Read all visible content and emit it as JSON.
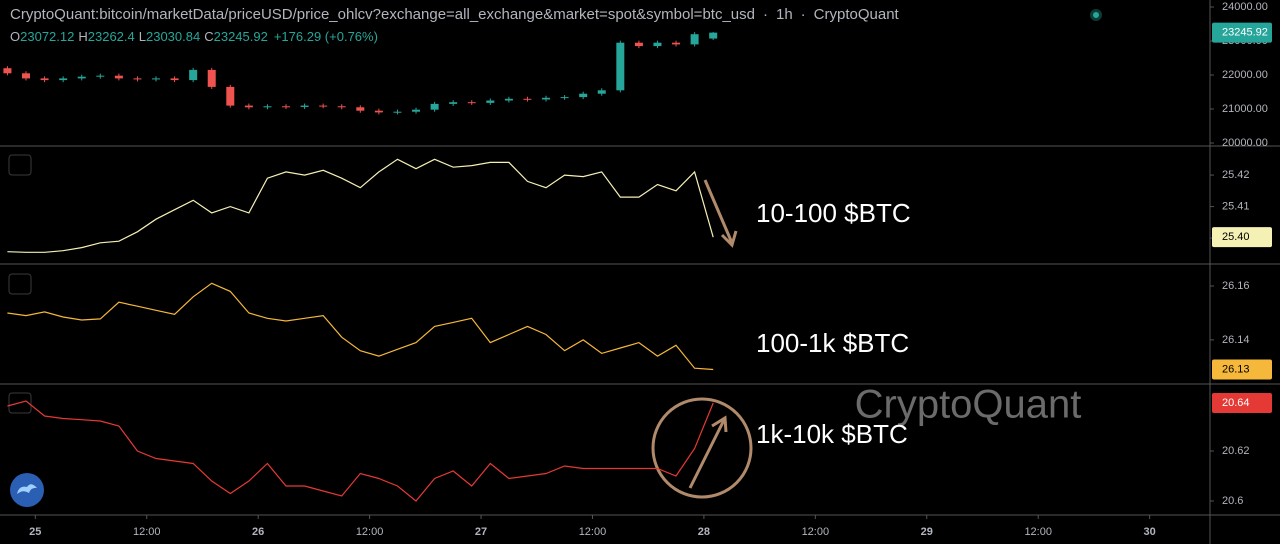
{
  "header": {
    "symbol": "CryptoQuant:bitcoin/marketData/priceUSD/price_ohlcv?exchange=all_exchange&market=spot&symbol=btc_usd",
    "sep": "·",
    "interval": "1h",
    "source": "CryptoQuant",
    "ohlc_labels": [
      "O",
      "H",
      "L",
      "C"
    ],
    "change": "+176.29 (+0.76%)",
    "watermark": "CryptoQuant"
  },
  "chart_data": [
    {
      "type": "candlestick",
      "up_color": "#26a69a",
      "down_color": "#ef5350",
      "x": [
        -3,
        -1,
        1,
        3,
        5,
        7,
        9,
        11,
        13,
        15,
        17,
        19,
        21,
        23,
        25,
        27,
        29,
        31,
        33,
        35,
        37,
        39,
        41,
        43,
        45,
        47,
        49,
        51,
        53,
        55,
        57,
        59,
        61,
        63,
        65,
        67,
        69,
        71,
        73
      ],
      "open": [
        22200,
        22050,
        21900,
        21850,
        21900,
        21950,
        21980,
        21900,
        21870,
        21900,
        21850,
        22150,
        21650,
        21100,
        21050,
        21080,
        21060,
        21100,
        21080,
        21050,
        20950,
        20900,
        20920,
        20980,
        21150,
        21200,
        21180,
        21250,
        21300,
        21280,
        21330,
        21350,
        21450,
        21550,
        22950,
        22850,
        22950,
        22900,
        23072.12
      ],
      "high": [
        22260,
        22110,
        21960,
        21960,
        22010,
        22040,
        22040,
        21960,
        21960,
        21960,
        22210,
        22210,
        21710,
        21160,
        21140,
        21140,
        21160,
        21160,
        21140,
        21110,
        21010,
        20980,
        21040,
        21210,
        21260,
        21260,
        21310,
        21360,
        21360,
        21390,
        21410,
        21510,
        21610,
        23010,
        23010,
        23010,
        23010,
        23260,
        23262.4
      ],
      "low": [
        21990,
        21840,
        21790,
        21790,
        21840,
        21890,
        21840,
        21810,
        21810,
        21790,
        21790,
        21590,
        21040,
        20990,
        20990,
        21000,
        21000,
        21020,
        20990,
        20890,
        20840,
        20840,
        20860,
        20920,
        21090,
        21120,
        21120,
        21190,
        21220,
        21220,
        21270,
        21290,
        21390,
        21490,
        22790,
        22790,
        22840,
        22840,
        23030.84
      ],
      "close": [
        22050,
        21900,
        21850,
        21900,
        21950,
        21980,
        21900,
        21870,
        21900,
        21850,
        22150,
        21650,
        21100,
        21050,
        21080,
        21060,
        21100,
        21080,
        21050,
        20950,
        20900,
        20920,
        20980,
        21150,
        21200,
        21180,
        21250,
        21300,
        21280,
        21330,
        21350,
        21450,
        21550,
        22950,
        22850,
        22950,
        22900,
        23200,
        23245.92
      ],
      "xlim": [
        -3.8,
        126.5
      ],
      "ylim": [
        19941,
        24206
      ],
      "yticks": [
        {
          "value": 20000,
          "label": "20000.00"
        },
        {
          "value": 21000,
          "label": "21000.00"
        },
        {
          "value": 22000,
          "label": "22000.00"
        },
        {
          "value": 23000,
          "label": "23000.00"
        },
        {
          "value": 24000,
          "label": "24000.00"
        }
      ],
      "last_label": "23245.92",
      "grid": false
    },
    {
      "type": "line",
      "label": "10-100 $BTC",
      "color": "#f5f0b4",
      "x": [
        -3,
        -1,
        1,
        3,
        5,
        7,
        9,
        11,
        13,
        15,
        17,
        19,
        21,
        23,
        25,
        27,
        29,
        31,
        33,
        35,
        37,
        39,
        41,
        43,
        45,
        47,
        49,
        51,
        53,
        55,
        57,
        59,
        61,
        63,
        65,
        67,
        69,
        71,
        73
      ],
      "values": [
        25.3957,
        25.3955,
        25.3955,
        25.396,
        25.397,
        25.3985,
        25.399,
        25.402,
        25.406,
        25.409,
        25.412,
        25.408,
        25.41,
        25.408,
        25.419,
        25.421,
        25.42,
        25.4215,
        25.419,
        25.416,
        25.421,
        25.425,
        25.422,
        25.425,
        25.4225,
        25.423,
        25.424,
        25.424,
        25.418,
        25.416,
        25.42,
        25.4195,
        25.421,
        25.413,
        25.413,
        25.417,
        25.415,
        25.421,
        25.4003
      ],
      "xlim": [
        -3.8,
        126.5
      ],
      "ylim": [
        25.3921,
        25.4289
      ],
      "yticks": [
        25.4,
        25.41,
        25.42
      ],
      "last_label": "25.40",
      "grid": false
    },
    {
      "type": "line",
      "label": "100-1k $BTC",
      "color": "#f5b83a",
      "x": [
        -3,
        -1,
        1,
        3,
        5,
        7,
        9,
        11,
        13,
        15,
        17,
        19,
        21,
        23,
        25,
        27,
        29,
        31,
        33,
        35,
        37,
        39,
        41,
        43,
        45,
        47,
        49,
        51,
        53,
        55,
        57,
        59,
        61,
        63,
        65,
        67,
        69,
        71,
        73
      ],
      "values": [
        26.15,
        26.149,
        26.1504,
        26.1485,
        26.1474,
        26.1478,
        26.154,
        26.1525,
        26.151,
        26.1495,
        26.156,
        26.161,
        26.158,
        26.15,
        26.148,
        26.147,
        26.148,
        26.149,
        26.141,
        26.136,
        26.134,
        26.1365,
        26.139,
        26.145,
        26.1465,
        26.148,
        26.139,
        26.142,
        26.145,
        26.142,
        26.136,
        26.14,
        26.135,
        26.137,
        26.139,
        26.134,
        26.138,
        26.1295,
        26.129
      ],
      "xlim": [
        -3.8,
        126.5
      ],
      "ylim": [
        26.124,
        26.1678
      ],
      "yticks": [
        26.14,
        26.16
      ],
      "last_label": "26.13",
      "grid": false
    },
    {
      "type": "line",
      "label": "1k-10k $BTC",
      "color": "#e53935",
      "x": [
        -3,
        -1,
        1,
        3,
        5,
        7,
        9,
        11,
        13,
        15,
        17,
        19,
        21,
        23,
        25,
        27,
        29,
        31,
        33,
        35,
        37,
        39,
        41,
        43,
        45,
        47,
        49,
        51,
        53,
        55,
        57,
        59,
        61,
        63,
        65,
        67,
        69,
        71,
        73
      ],
      "values": [
        20.638,
        20.64,
        20.634,
        20.633,
        20.6325,
        20.632,
        20.63,
        20.62,
        20.617,
        20.616,
        20.615,
        20.608,
        20.603,
        20.608,
        20.615,
        20.606,
        20.606,
        20.604,
        20.602,
        20.611,
        20.609,
        20.606,
        20.6,
        20.609,
        20.612,
        20.606,
        20.615,
        20.609,
        20.61,
        20.611,
        20.614,
        20.613,
        20.613,
        20.613,
        20.613,
        20.613,
        20.61,
        20.621,
        20.6392
      ],
      "xlim": [
        -3.8,
        126.5
      ],
      "ylim": [
        20.5944,
        20.6464
      ],
      "yticks": [
        20.6,
        20.62
      ],
      "last_label": "20.64",
      "grid": false,
      "xticks": [
        {
          "value": 0,
          "label": "25"
        },
        {
          "value": 12,
          "label": "12:00"
        },
        {
          "value": 24,
          "label": "26"
        },
        {
          "value": 36,
          "label": "12:00"
        },
        {
          "value": 48,
          "label": "27"
        },
        {
          "value": 60,
          "label": "12:00"
        },
        {
          "value": 72,
          "label": "28"
        },
        {
          "value": 84,
          "label": "12:00"
        },
        {
          "value": 96,
          "label": "29"
        },
        {
          "value": 108,
          "label": "12:00"
        },
        {
          "value": 120,
          "label": "30"
        }
      ]
    }
  ]
}
